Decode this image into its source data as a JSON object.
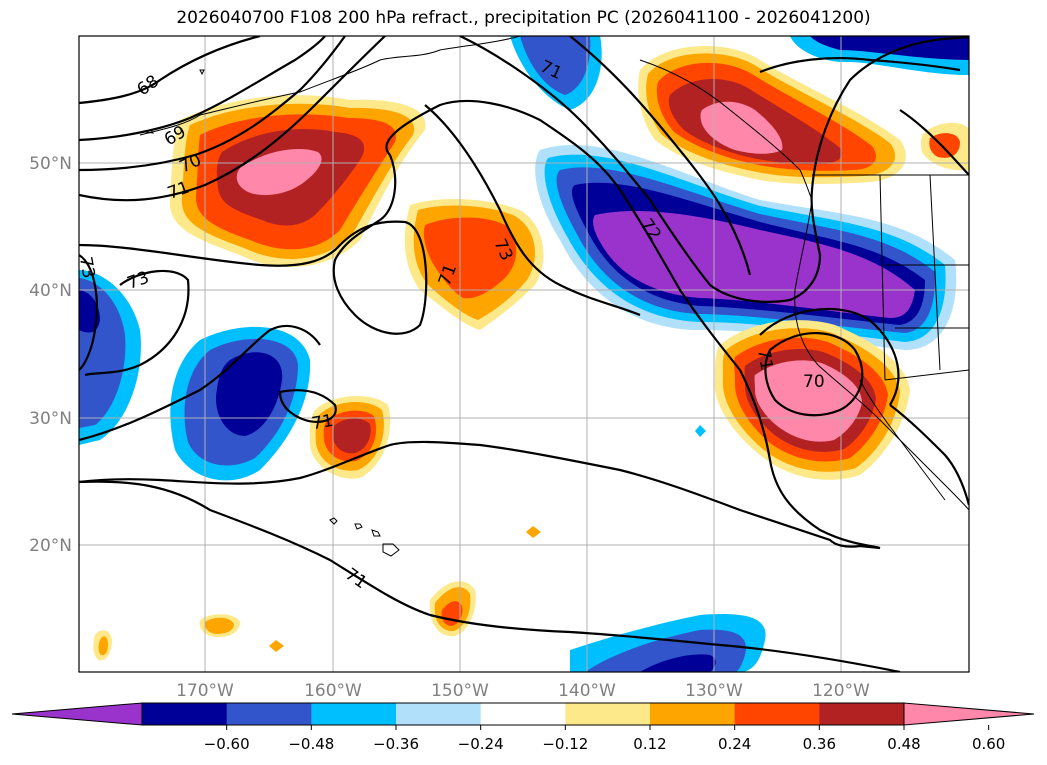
{
  "title": "2026040700 F108 200 hPa refract., precipitation PC (2026041100 - 2026041200)",
  "map": {
    "lat_labels": [
      "50°N",
      "40°N",
      "30°N",
      "20°N"
    ],
    "lon_labels": [
      "170°W",
      "160°W",
      "150°W",
      "140°W",
      "130°W",
      "120°W"
    ],
    "contour_labels": [
      "68",
      "69",
      "70",
      "71",
      "71",
      "71",
      "72",
      "73",
      "73",
      "73",
      "71",
      "70",
      "71",
      "71"
    ],
    "label_color": "#808080"
  },
  "colorbar": {
    "tick_labels": [
      "−0.60",
      "−0.48",
      "−0.36",
      "−0.24",
      "−0.12",
      "0.12",
      "0.24",
      "0.36",
      "0.48",
      "0.60"
    ],
    "colors": [
      "#9933cc",
      "#000099",
      "#3355cc",
      "#00bfff",
      "#b0e0fa",
      "#ffffff",
      "#fde98a",
      "#ffa500",
      "#ff4500",
      "#b22222",
      "#ff88aa"
    ]
  }
}
